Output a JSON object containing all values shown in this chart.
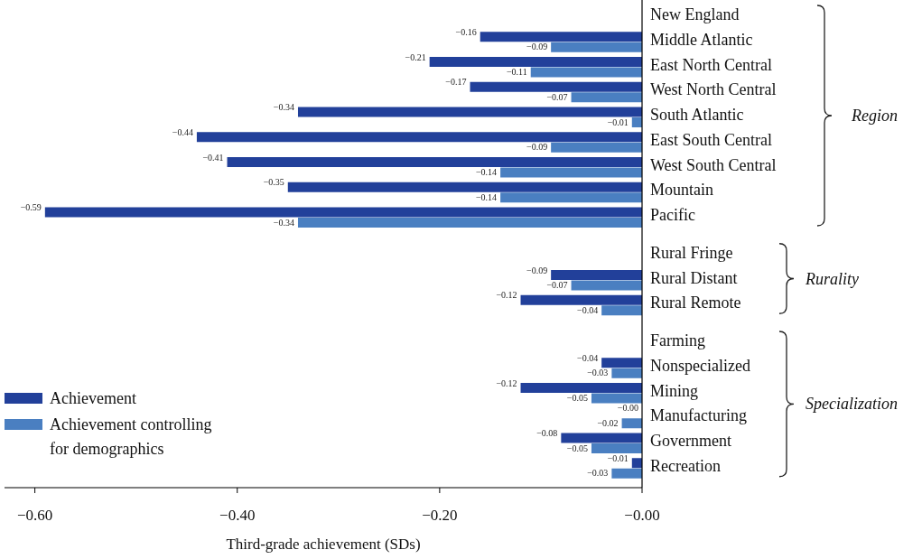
{
  "chart_data": {
    "type": "bar",
    "orientation": "horizontal",
    "categories": [
      "New England",
      "Middle Atlantic",
      "East North Central",
      "West North Central",
      "South Atlantic",
      "East South Central",
      "West South Central",
      "Mountain",
      "Pacific",
      "Rural Fringe",
      "Rural Distant",
      "Rural Remote",
      "Farming",
      "Nonspecialized",
      "Mining",
      "Manufacturing",
      "Government",
      "Recreation"
    ],
    "series": [
      {
        "name": "Achievement",
        "color": "#22409a",
        "values": [
          null,
          -0.16,
          -0.21,
          -0.17,
          -0.34,
          -0.44,
          -0.41,
          -0.35,
          -0.59,
          null,
          -0.09,
          -0.12,
          null,
          -0.04,
          -0.12,
          -0.0,
          -0.08,
          -0.01
        ],
        "value_labels": [
          null,
          "−0.16",
          "−0.21",
          "−0.17",
          "−0.34",
          "−0.44",
          "−0.41",
          "−0.35",
          "−0.59",
          null,
          "−0.09",
          "−0.12",
          null,
          "−0.04",
          "−0.12",
          "−0.00",
          "−0.08",
          "−0.01"
        ]
      },
      {
        "name": "Achievement controlling for demographics",
        "color": "#4a7fc1",
        "values": [
          null,
          -0.09,
          -0.11,
          -0.07,
          -0.01,
          -0.09,
          -0.14,
          -0.14,
          -0.34,
          null,
          -0.07,
          -0.04,
          null,
          -0.03,
          -0.05,
          -0.02,
          -0.05,
          -0.03
        ],
        "value_labels": [
          null,
          "−0.09",
          "−0.11",
          "−0.07",
          "−0.01",
          "−0.09",
          "−0.14",
          "−0.14",
          "−0.34",
          null,
          "−0.07",
          "−0.04",
          null,
          "−0.03",
          "−0.05",
          "−0.02",
          "−0.05",
          "−0.03"
        ]
      }
    ],
    "xlim": [
      -0.63,
      0
    ],
    "xticks": [
      {
        "value": -0.6,
        "label": "−0.60"
      },
      {
        "value": -0.4,
        "label": "−0.40"
      },
      {
        "value": -0.2,
        "label": "−0.20"
      },
      {
        "value": 0,
        "label": "−0.00"
      }
    ],
    "xlabel": "Third-grade achievement (SDs)",
    "annotations": [
      "Region",
      "Rurality",
      "Specialization"
    ],
    "legend": "bottom left"
  }
}
